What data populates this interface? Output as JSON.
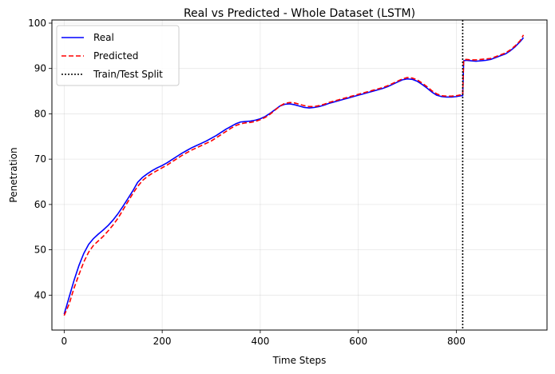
{
  "chart_data": {
    "type": "line",
    "title": "Real vs Predicted - Whole Dataset (LSTM)",
    "xlabel": "Time Steps",
    "ylabel": "Penetration",
    "xlim": [
      -25,
      985
    ],
    "ylim": [
      32.3,
      100.7
    ],
    "xticks": [
      0,
      200,
      400,
      600,
      800
    ],
    "yticks": [
      40,
      50,
      60,
      70,
      80,
      90,
      100
    ],
    "grid": true,
    "legend_position": "top-left",
    "split": {
      "name": "Train/Test Split",
      "x": 813,
      "color": "#000000",
      "style": "dotted"
    },
    "series": [
      {
        "name": "Real",
        "color": "#0000ff",
        "style": "solid",
        "x": [
          0,
          10,
          20,
          30,
          40,
          50,
          60,
          70,
          80,
          90,
          100,
          110,
          120,
          130,
          140,
          150,
          160,
          170,
          180,
          190,
          200,
          210,
          220,
          230,
          240,
          250,
          260,
          270,
          280,
          290,
          300,
          310,
          320,
          330,
          340,
          350,
          360,
          370,
          380,
          390,
          400,
          410,
          420,
          430,
          440,
          450,
          460,
          470,
          480,
          490,
          500,
          510,
          520,
          530,
          540,
          550,
          560,
          570,
          580,
          590,
          600,
          610,
          620,
          630,
          640,
          650,
          660,
          670,
          680,
          690,
          700,
          710,
          720,
          730,
          740,
          750,
          760,
          770,
          780,
          790,
          800,
          810,
          813,
          815,
          820,
          830,
          840,
          850,
          860,
          870,
          880,
          890,
          900,
          910,
          920,
          930,
          937
        ],
        "values": [
          35.8,
          39.5,
          43.2,
          46.5,
          49.2,
          51.2,
          52.5,
          53.5,
          54.4,
          55.4,
          56.6,
          58.0,
          59.6,
          61.3,
          63.0,
          64.9,
          66.0,
          66.8,
          67.5,
          68.1,
          68.6,
          69.2,
          69.9,
          70.6,
          71.3,
          71.9,
          72.5,
          73.0,
          73.5,
          74.0,
          74.6,
          75.2,
          75.9,
          76.6,
          77.2,
          77.8,
          78.2,
          78.3,
          78.4,
          78.6,
          78.9,
          79.4,
          80.1,
          80.9,
          81.7,
          82.1,
          82.2,
          82.0,
          81.7,
          81.4,
          81.3,
          81.4,
          81.6,
          81.9,
          82.3,
          82.6,
          82.9,
          83.2,
          83.5,
          83.8,
          84.1,
          84.4,
          84.7,
          85.0,
          85.3,
          85.6,
          86.0,
          86.5,
          87.0,
          87.5,
          87.7,
          87.6,
          87.2,
          86.5,
          85.7,
          84.8,
          84.1,
          83.8,
          83.7,
          83.7,
          83.8,
          84.0,
          84.0,
          91.7,
          91.8,
          91.7,
          91.6,
          91.7,
          91.8,
          92.0,
          92.4,
          92.8,
          93.2,
          93.9,
          94.8,
          95.9,
          96.8
        ]
      },
      {
        "name": "Predicted",
        "color": "#ff0000",
        "style": "dashed",
        "x": [
          0,
          10,
          20,
          30,
          40,
          50,
          60,
          70,
          80,
          90,
          100,
          110,
          120,
          130,
          140,
          150,
          160,
          170,
          180,
          190,
          200,
          210,
          220,
          230,
          240,
          250,
          260,
          270,
          280,
          290,
          300,
          310,
          320,
          330,
          340,
          350,
          360,
          370,
          380,
          390,
          400,
          410,
          420,
          430,
          440,
          450,
          460,
          470,
          480,
          490,
          500,
          510,
          520,
          530,
          540,
          550,
          560,
          570,
          580,
          590,
          600,
          610,
          620,
          630,
          640,
          650,
          660,
          670,
          680,
          690,
          700,
          710,
          720,
          730,
          740,
          750,
          760,
          770,
          780,
          790,
          800,
          810,
          813,
          815,
          820,
          830,
          840,
          850,
          860,
          870,
          880,
          890,
          900,
          910,
          920,
          930,
          937
        ],
        "values": [
          35.5,
          38.0,
          41.5,
          44.5,
          47.3,
          49.5,
          51.0,
          52.0,
          53.0,
          54.2,
          55.5,
          57.0,
          58.8,
          60.6,
          62.4,
          64.0,
          65.3,
          66.2,
          66.9,
          67.5,
          68.1,
          68.7,
          69.4,
          70.1,
          70.8,
          71.4,
          72.0,
          72.5,
          73.0,
          73.5,
          74.0,
          74.7,
          75.4,
          76.1,
          76.8,
          77.4,
          77.8,
          78.0,
          78.1,
          78.3,
          78.7,
          79.2,
          79.9,
          80.8,
          81.7,
          82.3,
          82.5,
          82.4,
          82.1,
          81.8,
          81.6,
          81.6,
          81.8,
          82.1,
          82.5,
          82.8,
          83.1,
          83.4,
          83.7,
          84.0,
          84.3,
          84.6,
          84.9,
          85.2,
          85.5,
          85.8,
          86.2,
          86.7,
          87.2,
          87.7,
          88.0,
          87.9,
          87.5,
          86.8,
          86.0,
          85.1,
          84.4,
          84.0,
          83.9,
          83.9,
          84.0,
          84.2,
          84.2,
          91.9,
          92.0,
          91.9,
          91.9,
          92.0,
          92.1,
          92.2,
          92.6,
          93.0,
          93.4,
          94.1,
          95.0,
          96.1,
          97.4
        ]
      }
    ]
  }
}
